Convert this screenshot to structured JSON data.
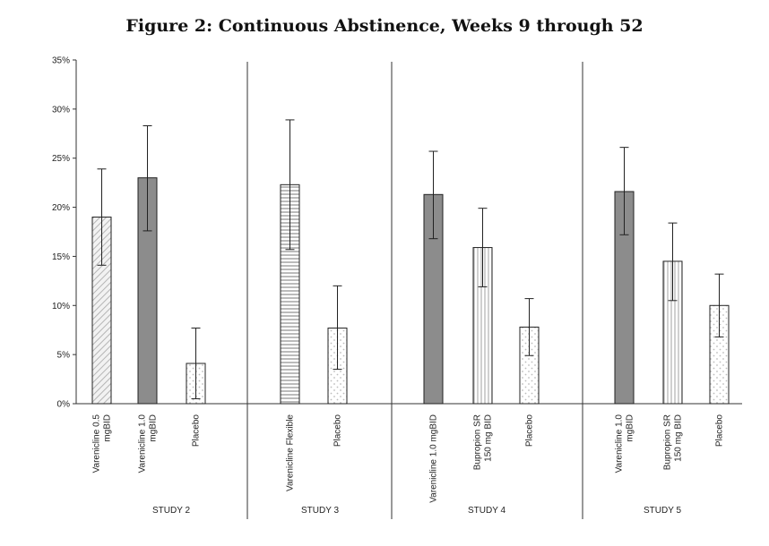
{
  "chart_data": {
    "type": "bar",
    "title": "Figure 2: Continuous Abstinence, Weeks 9 through 52",
    "ylabel": "",
    "xlabel": "",
    "ylim": [
      0,
      35
    ],
    "yticks": [
      "0%",
      "5%",
      "10%",
      "15%",
      "20%",
      "25%",
      "30%",
      "35%"
    ],
    "groups": [
      {
        "name": "STUDY 2",
        "bars": [
          {
            "label": [
              "Varenicline 0.5",
              "mgBID"
            ],
            "value": 19.0,
            "err_low": 14.1,
            "err_high": 23.9,
            "pattern": "diag"
          },
          {
            "label": [
              "Varenicline 1.0",
              "mgBID"
            ],
            "value": 23.0,
            "err_low": 17.6,
            "err_high": 28.3,
            "pattern": "solid"
          },
          {
            "label": [
              "Placebo"
            ],
            "value": 4.1,
            "err_low": 0.5,
            "err_high": 7.7,
            "pattern": "dots"
          }
        ]
      },
      {
        "name": "STUDY 3",
        "bars": [
          {
            "label": [
              "Varenicline Flexible"
            ],
            "value": 22.3,
            "err_low": 15.7,
            "err_high": 28.9,
            "pattern": "hstripes"
          },
          {
            "label": [
              "Placebo"
            ],
            "value": 7.7,
            "err_low": 3.5,
            "err_high": 12.0,
            "pattern": "dots"
          }
        ]
      },
      {
        "name": "STUDY 4",
        "bars": [
          {
            "label": [
              "Varenicline 1.0 mgBID"
            ],
            "value": 21.3,
            "err_low": 16.8,
            "err_high": 25.7,
            "pattern": "solid"
          },
          {
            "label": [
              "Bupropion SR",
              "150 mg BID"
            ],
            "value": 15.9,
            "err_low": 11.9,
            "err_high": 19.9,
            "pattern": "vstripes"
          },
          {
            "label": [
              "Placebo"
            ],
            "value": 7.8,
            "err_low": 4.9,
            "err_high": 10.7,
            "pattern": "dots"
          }
        ]
      },
      {
        "name": "STUDY 5",
        "bars": [
          {
            "label": [
              "Varenicline 1.0",
              "mgBID"
            ],
            "value": 21.6,
            "err_low": 17.2,
            "err_high": 26.1,
            "pattern": "solid"
          },
          {
            "label": [
              "Bupropion SR",
              "150 mg BID"
            ],
            "value": 14.5,
            "err_low": 10.5,
            "err_high": 18.4,
            "pattern": "vstripes"
          },
          {
            "label": [
              "Placebo"
            ],
            "value": 10.0,
            "err_low": 6.8,
            "err_high": 13.2,
            "pattern": "dots"
          }
        ]
      }
    ]
  }
}
